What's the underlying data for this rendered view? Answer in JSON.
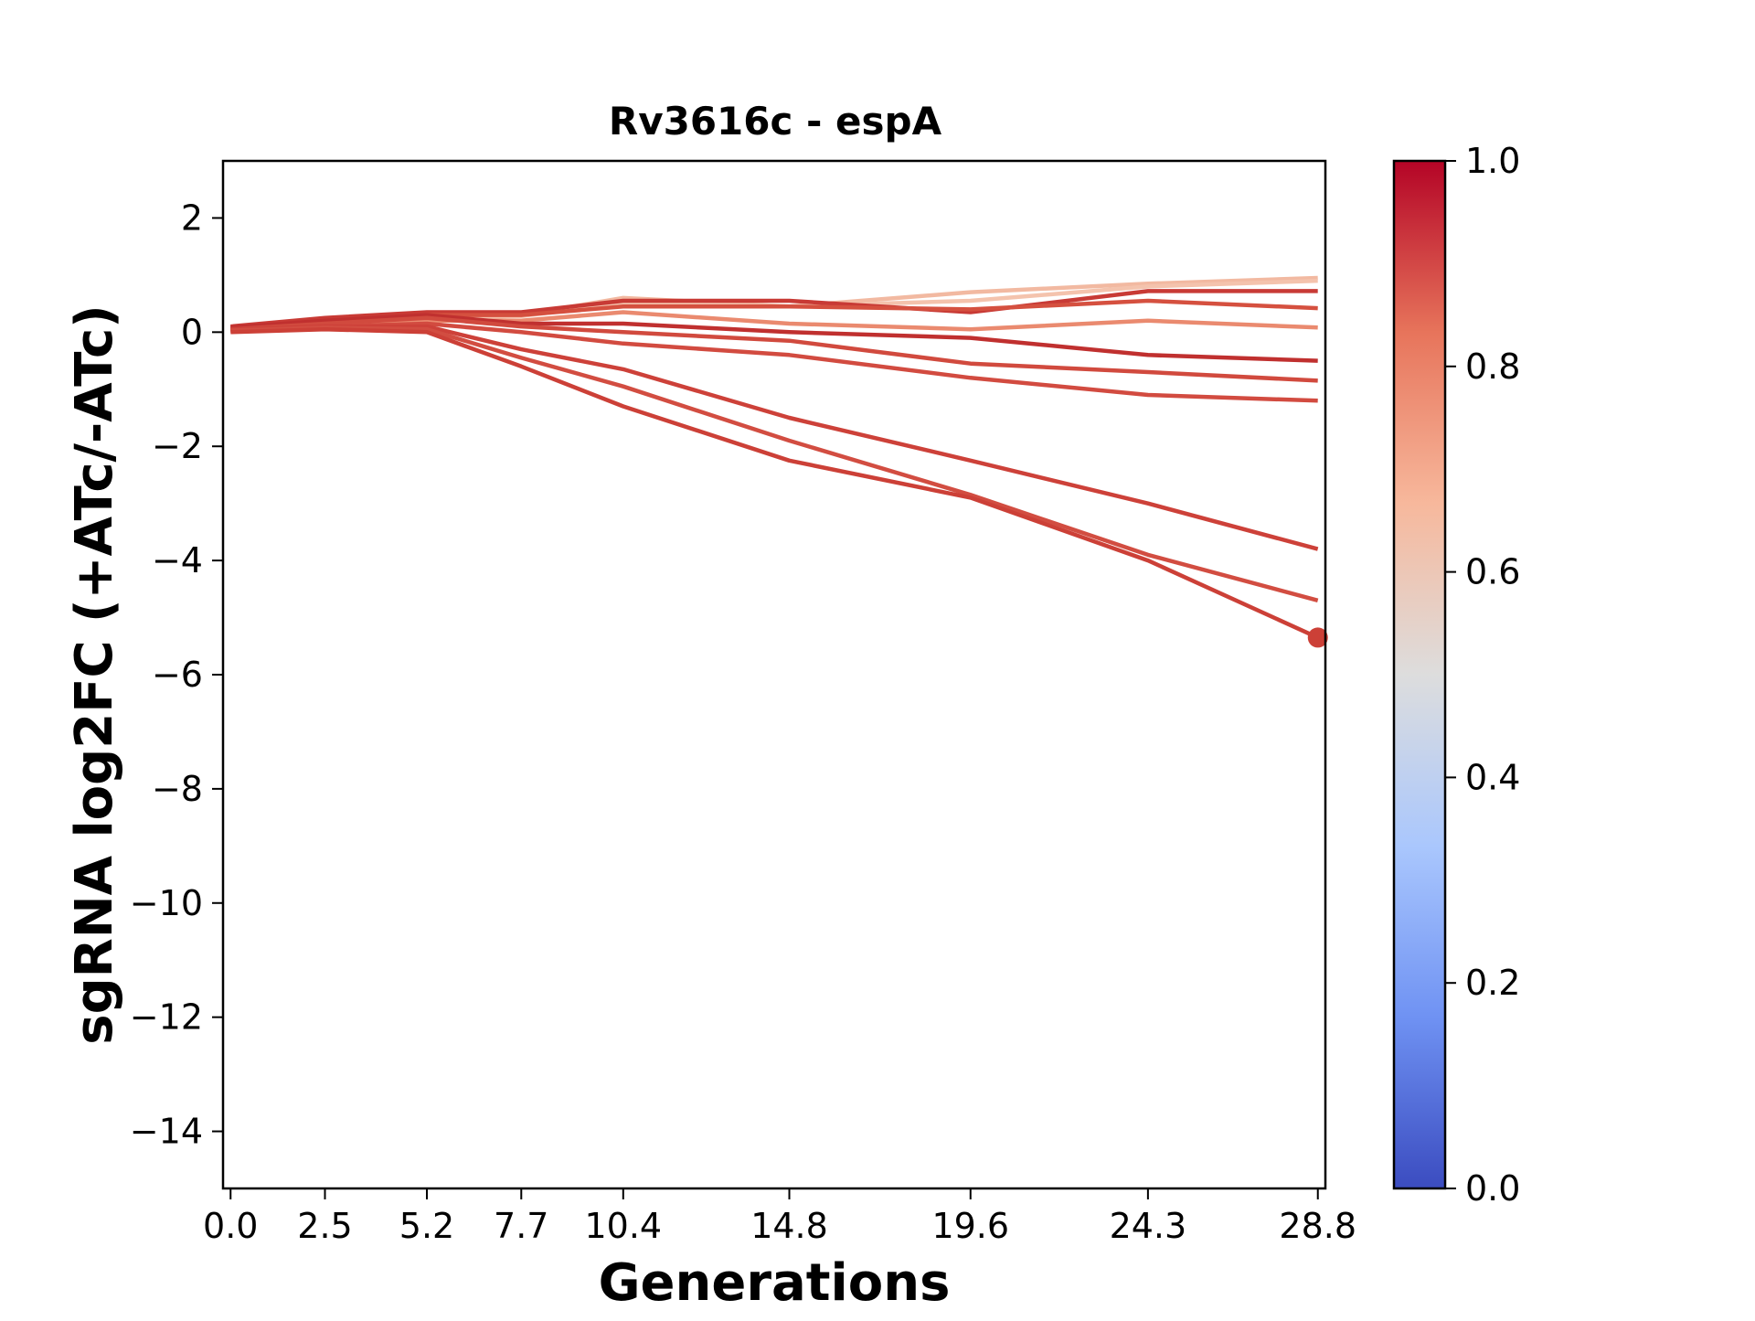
{
  "chart_data": {
    "type": "line",
    "title": "Rv3616c - espA",
    "xlabel": "Generations",
    "ylabel": "sgRNA log2FC (+ATc/-ATc)",
    "x": [
      0.0,
      2.5,
      5.2,
      7.7,
      10.4,
      14.8,
      19.6,
      24.3,
      28.8
    ],
    "x_tick_labels": [
      "0.0",
      "2.5",
      "5.2",
      "7.7",
      "10.4",
      "14.8",
      "19.6",
      "24.3",
      "28.8"
    ],
    "xlim": [
      -0.2,
      29.0
    ],
    "ylim": [
      -15,
      3
    ],
    "y_ticks": [
      2,
      0,
      -2,
      -4,
      -6,
      -8,
      -10,
      -12,
      -14
    ],
    "y_tick_labels": [
      "2",
      "0",
      "−2",
      "−4",
      "−6",
      "−8",
      "−10",
      "−12",
      "−14"
    ],
    "grid": false,
    "colormap": "coolwarm",
    "colorbar": {
      "ticks": [
        0.0,
        0.2,
        0.4,
        0.6,
        0.8,
        1.0
      ],
      "tick_labels": [
        "0.0",
        "0.2",
        "0.4",
        "0.6",
        "0.8",
        "1.0"
      ],
      "colors": [
        "#3b4cc0",
        "#6f92f3",
        "#aac7fd",
        "#dddddd",
        "#f7b89c",
        "#e7745b",
        "#b40426"
      ]
    },
    "series": [
      {
        "values": [
          0.05,
          0.12,
          0.18,
          0.3,
          0.6,
          0.45,
          0.7,
          0.85,
          0.95
        ],
        "color": "#f2b9a1"
      },
      {
        "values": [
          0.08,
          0.18,
          0.25,
          0.28,
          0.5,
          0.45,
          0.55,
          0.8,
          0.9
        ],
        "color": "#f4c3ad"
      },
      {
        "values": [
          0.1,
          0.25,
          0.35,
          0.35,
          0.55,
          0.55,
          0.35,
          0.72,
          0.72
        ],
        "color": "#c83a35"
      },
      {
        "values": [
          0.07,
          0.15,
          0.3,
          0.3,
          0.45,
          0.45,
          0.4,
          0.55,
          0.42
        ],
        "color": "#d5503f"
      },
      {
        "values": [
          0.05,
          0.1,
          0.2,
          0.2,
          0.35,
          0.15,
          0.05,
          0.2,
          0.08
        ],
        "color": "#ea8a6f"
      },
      {
        "values": [
          0.08,
          0.2,
          0.3,
          0.15,
          0.15,
          0.0,
          -0.1,
          -0.4,
          -0.5
        ],
        "color": "#c0302f"
      },
      {
        "values": [
          0.05,
          0.15,
          0.25,
          0.1,
          0.0,
          -0.15,
          -0.55,
          -0.7,
          -0.85
        ],
        "color": "#d14a3e"
      },
      {
        "values": [
          0.02,
          0.1,
          0.15,
          0.0,
          -0.2,
          -0.4,
          -0.8,
          -1.1,
          -1.2
        ],
        "color": "#d24b40"
      },
      {
        "values": [
          0.05,
          0.1,
          0.1,
          -0.3,
          -0.65,
          -1.5,
          -2.25,
          -3.0,
          -3.8
        ],
        "color": "#cd4139"
      },
      {
        "values": [
          0.03,
          0.08,
          0.05,
          -0.45,
          -0.95,
          -1.9,
          -2.85,
          -3.9,
          -4.7
        ],
        "color": "#d24d41"
      },
      {
        "values": [
          0.0,
          0.05,
          0.0,
          -0.6,
          -1.3,
          -2.25,
          -2.9,
          -4.0,
          -5.35
        ],
        "color": "#cc4037",
        "end_marker": true
      }
    ]
  }
}
